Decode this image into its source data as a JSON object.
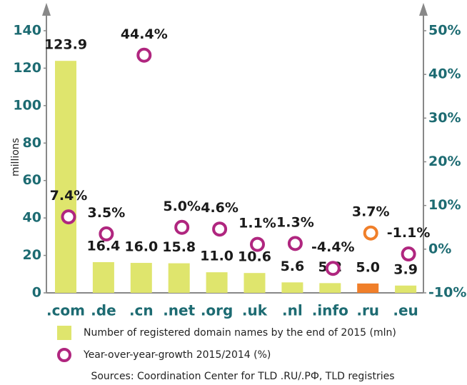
{
  "chart_data": {
    "type": "bar_scatter",
    "categories": [
      ".com",
      ".de",
      ".cn",
      ".net",
      ".org",
      ".uk",
      ".nl",
      ".info",
      ".ru",
      ".eu"
    ],
    "category_colors": [
      "#1d6b72",
      "#1d6b72",
      "#1d6b72",
      "#1d6b72",
      "#1d6b72",
      "#1d6b72",
      "#1d6b72",
      "#1d6b72",
      "#f07f2a",
      "#1d6b72"
    ],
    "series": [
      {
        "name": "Number of registered domain names by the end of 2015 (mln)",
        "color": "#dfe56d",
        "colors": [
          "#dfe56d",
          "#dfe56d",
          "#dfe56d",
          "#dfe56d",
          "#dfe56d",
          "#dfe56d",
          "#dfe56d",
          "#dfe56d",
          "#f07f2a",
          "#dfe56d"
        ],
        "values": [
          123.9,
          16.4,
          16.0,
          15.8,
          11.0,
          10.6,
          5.6,
          5.2,
          5.0,
          3.9
        ],
        "value_labels": [
          "123.9",
          "16.4",
          "16.0",
          "15.8",
          "11.0",
          "10.6",
          "5.6",
          "5.2",
          "5.0",
          "3.9"
        ]
      },
      {
        "name": "Year-over-year-growth 2015/2014 (%)",
        "color": "#b0267f",
        "axis": "y2",
        "colors": [
          "#b0267f",
          "#b0267f",
          "#b0267f",
          "#b0267f",
          "#b0267f",
          "#b0267f",
          "#b0267f",
          "#b0267f",
          "#f07f2a",
          "#b0267f"
        ],
        "values": [
          7.4,
          3.5,
          44.4,
          5.0,
          4.6,
          1.1,
          1.3,
          -4.4,
          3.7,
          -1.1
        ],
        "value_labels": [
          "7.4%",
          "3.5%",
          "44.4%",
          "5.0%",
          "4.6%",
          "1.1%",
          "1.3%",
          "-4.4%",
          "3.7%",
          "-1.1%"
        ]
      }
    ],
    "ylabel": "millions",
    "ylim": [
      0,
      140
    ],
    "yticks": [
      0,
      20,
      40,
      60,
      80,
      100,
      120,
      140
    ],
    "y2lim": [
      -10,
      50
    ],
    "y2ticks": [
      {
        "value": -10,
        "label": "-10%"
      },
      {
        "value": 0,
        "label": "0%"
      },
      {
        "value": 10,
        "label": "10%"
      },
      {
        "value": 20,
        "label": "20%"
      },
      {
        "value": 30,
        "label": "30%"
      },
      {
        "value": 40,
        "label": "40%"
      },
      {
        "value": 50,
        "label": "50%"
      }
    ],
    "source": "Sources: Coordination Center for TLD .RU/.РФ, TLD registries"
  }
}
